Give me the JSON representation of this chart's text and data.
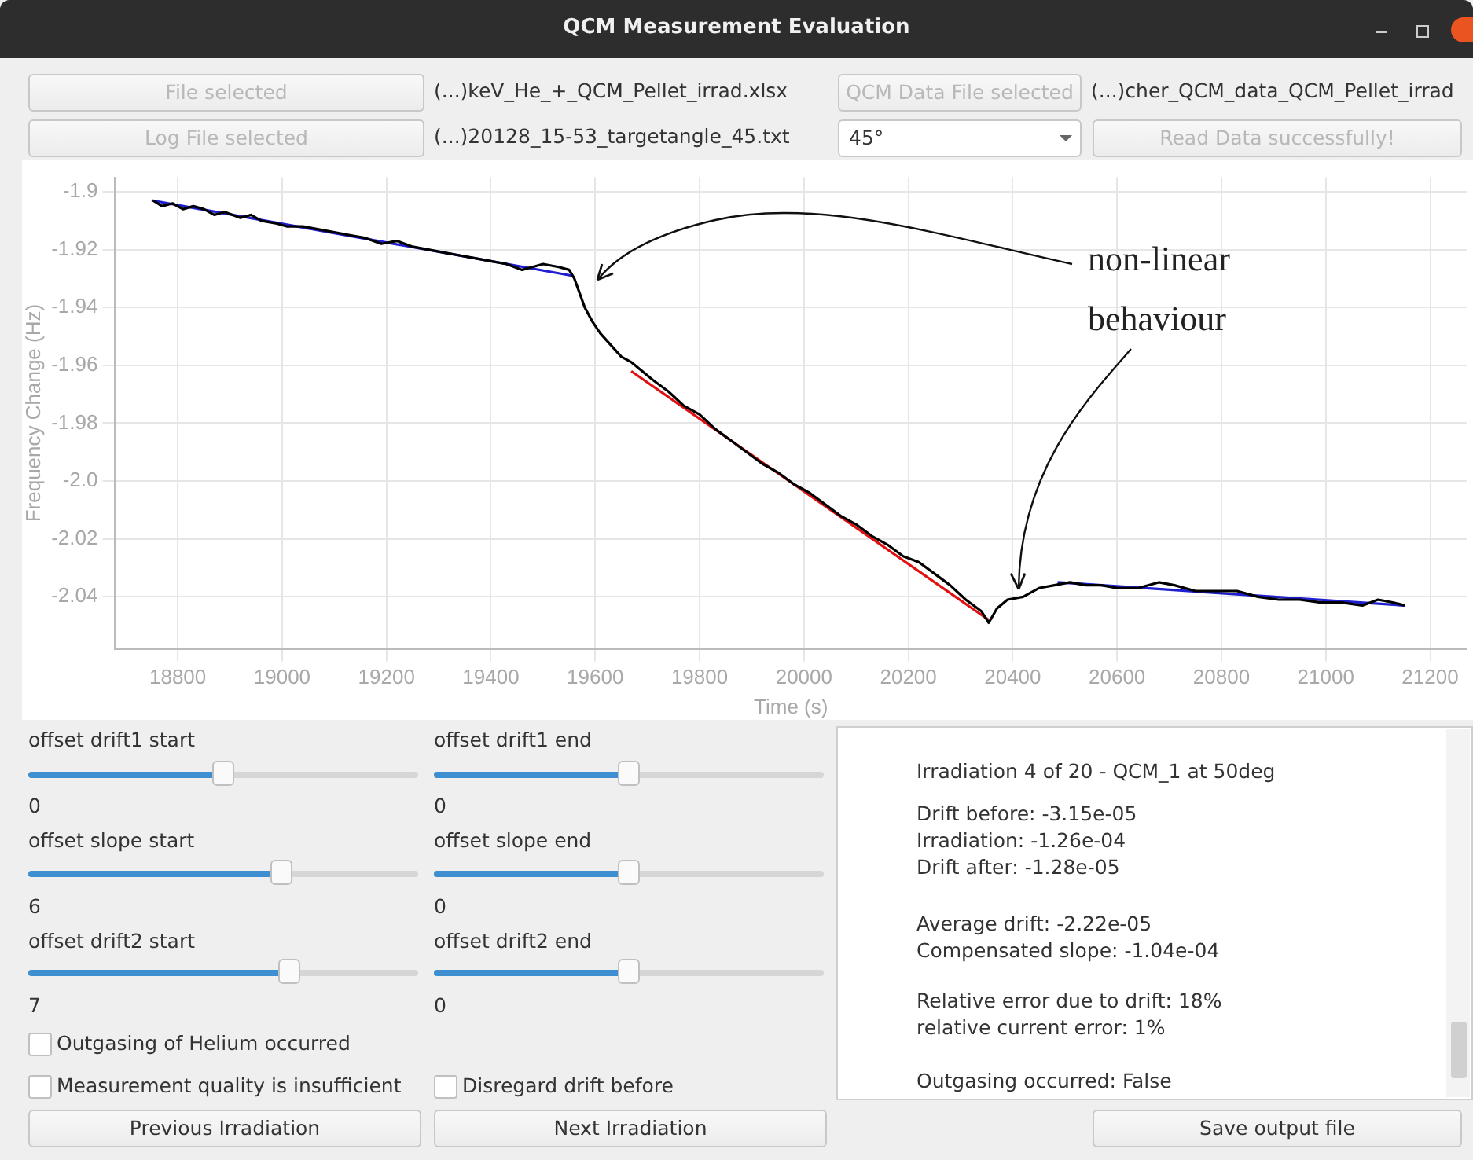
{
  "chart_data": [
    {
      "type": "line",
      "xlabel": "Time (s)",
      "ylabel": "Frequency Change (Hz)",
      "xlim": [
        18680,
        21270
      ],
      "ylim": [
        -2.058,
        -1.895
      ],
      "xticks": [
        18800,
        19000,
        19200,
        19400,
        19600,
        19800,
        20000,
        20200,
        20400,
        20600,
        20800,
        21000,
        21200
      ],
      "yticks": [
        -1.9,
        -1.92,
        -1.94,
        -1.96,
        -1.98,
        {
          "value": -2,
          "label": "-2.0"
        },
        -2.02,
        -2.04
      ],
      "grid": true,
      "annotations": [
        {
          "text": "non-linear behaviour",
          "x": 20410,
          "y": -2.039
        }
      ],
      "series": [
        {
          "color": "#000000",
          "x": [
            18753,
            18770,
            18790,
            18810,
            18830,
            18850,
            18870,
            18890,
            18920,
            18940,
            18960,
            18990,
            19010,
            19040,
            19070,
            19100,
            19130,
            19160,
            19190,
            19220,
            19250,
            19280,
            19310,
            19340,
            19370,
            19400,
            19430,
            19460,
            19480,
            19500,
            19530,
            19550,
            19560,
            19570,
            19580,
            19595,
            19610,
            19630,
            19650,
            19670,
            19690,
            19710,
            19740,
            19770,
            19800,
            19830,
            19860,
            19890,
            19920,
            19950,
            19980,
            20010,
            20040,
            20070,
            20100,
            20130,
            20160,
            20190,
            20220,
            20250,
            20280,
            20310,
            20340,
            20354,
            20370,
            20390,
            20420,
            20450,
            20480,
            20510,
            20540,
            20570,
            20600,
            20640,
            20680,
            20710,
            20750,
            20790,
            20830,
            20870,
            20910,
            20950,
            20990,
            21030,
            21070,
            21100,
            21130,
            21151
          ],
          "values": [
            -1.903,
            -1.905,
            -1.904,
            -1.906,
            -1.905,
            -1.906,
            -1.908,
            -1.907,
            -1.909,
            -1.908,
            -1.91,
            -1.911,
            -1.912,
            -1.912,
            -1.913,
            -1.914,
            -1.915,
            -1.916,
            -1.918,
            -1.917,
            -1.919,
            -1.92,
            -1.921,
            -1.922,
            -1.923,
            -1.924,
            -1.925,
            -1.927,
            -1.926,
            -1.925,
            -1.926,
            -1.927,
            -1.93,
            -1.935,
            -1.94,
            -1.945,
            -1.949,
            -1.953,
            -1.957,
            -1.959,
            -1.962,
            -1.965,
            -1.969,
            -1.974,
            -1.977,
            -1.982,
            -1.986,
            -1.99,
            -1.994,
            -1.997,
            -2.001,
            -2.004,
            -2.008,
            -2.012,
            -2.015,
            -2.019,
            -2.022,
            -2.026,
            -2.028,
            -2.032,
            -2.036,
            -2.041,
            -2.045,
            -2.049,
            -2.044,
            -2.041,
            -2.04,
            -2.037,
            -2.036,
            -2.035,
            -2.036,
            -2.036,
            -2.037,
            -2.037,
            -2.035,
            -2.036,
            -2.038,
            -2.038,
            -2.038,
            -2.04,
            -2.041,
            -2.041,
            -2.042,
            -2.042,
            -2.043,
            -2.041,
            -2.042,
            -2.043
          ]
        },
        {
          "color": "#1f1fd0",
          "x": [
            18750,
            19555
          ],
          "values": [
            -1.903,
            -1.929
          ]
        },
        {
          "color": "#e01010",
          "x": [
            19669,
            20354
          ],
          "values": [
            -1.962,
            -2.048
          ]
        },
        {
          "color": "#1f1fd0",
          "x": [
            20486,
            21151
          ],
          "values": [
            -2.035,
            -2.043
          ]
        }
      ]
    },
    {
      "type": "other",
      "title": "QCM Measurement Evaluation",
      "annotations": [
        "File selected",
        "(...)keV_He_+_QCM_Pellet_irrad.xlsx",
        "QCM Data File selected",
        "(...)cher_QCM_data_QCM_Pellet_irrad",
        "Log File selected",
        "(...)20128_15-53_targetangle_45.txt",
        "45°",
        "Read Data successfully!",
        "offset drift1 start",
        "0",
        "offset drift1 end",
        "0",
        "offset slope start",
        "6",
        "offset slope end",
        "0",
        "offset drift2 start",
        "7",
        "offset drift2 end",
        "0",
        "Outgasing of Helium occurred",
        "Measurement quality is insufficient",
        "Disregard drift before",
        "Previous Irradiation",
        "Next Irradiation",
        "Save output file",
        "Irradiation 4 of 20 - QCM_1 at 50deg",
        "Drift before: -3.15e-05",
        "Irradiation: -1.26e-04",
        "Drift after: -1.28e-05",
        "Average drift: -2.22e-05",
        "Compensated slope: -1.04e-04",
        "Relative error due to drift: 18%",
        "relative current error: 1%",
        "Outgasing occurred: False"
      ]
    }
  ]
}
